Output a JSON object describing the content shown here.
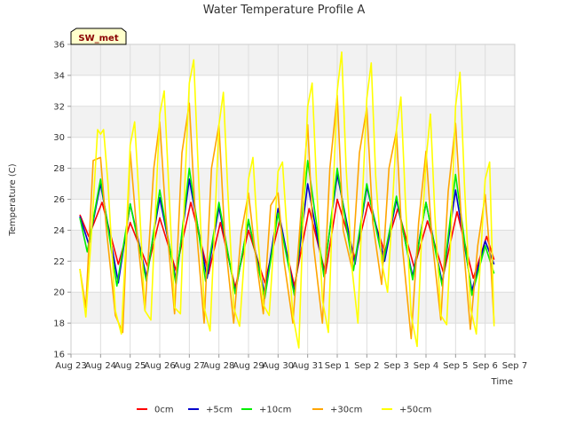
{
  "chart_data": {
    "type": "line",
    "title": "Water Temperature Profile A",
    "xlabel": "Time",
    "ylabel": "Temperature (C)",
    "station_tag": "SW_met",
    "xlim": [
      0,
      15
    ],
    "ylim": [
      16,
      36
    ],
    "x_tick_labels": [
      "Aug 23",
      "Aug 24",
      "Aug 25",
      "Aug 26",
      "Aug 27",
      "Aug 28",
      "Aug 29",
      "Aug 30",
      "Aug 31",
      "Sep 1",
      "Sep 2",
      "Sep 3",
      "Sep 4",
      "Sep 5",
      "Sep 6",
      "Sep 7"
    ],
    "y_ticks": [
      16,
      18,
      20,
      22,
      24,
      26,
      28,
      30,
      32,
      34,
      36
    ],
    "grid": true,
    "legend_position": "bottom",
    "colors": {
      "0cm": "#ff0000",
      "+5cm": "#0000cc",
      "+10cm": "#00ee00",
      "+30cm": "#ffa500",
      "+50cm": "#ffff00"
    },
    "series": [
      {
        "name": "0cm",
        "x": [
          0.3,
          0.6,
          1.05,
          1.6,
          2.0,
          2.6,
          3.0,
          3.55,
          4.05,
          4.65,
          5.05,
          5.55,
          6.0,
          6.55,
          7.05,
          7.55,
          8.05,
          8.6,
          9.0,
          9.6,
          10.05,
          10.6,
          11.05,
          11.6,
          12.05,
          12.6,
          13.05,
          13.6,
          14.05,
          14.3
        ],
        "y": [
          25.0,
          23.6,
          25.8,
          21.8,
          24.5,
          21.6,
          24.8,
          21.4,
          25.8,
          21.2,
          24.5,
          20.3,
          24.0,
          20.6,
          24.6,
          20.4,
          25.4,
          21.2,
          26.0,
          22.2,
          25.8,
          22.6,
          25.4,
          21.6,
          24.6,
          21.2,
          25.2,
          20.9,
          23.6,
          22.1
        ]
      },
      {
        "name": "+5cm",
        "x": [
          0.3,
          0.6,
          1.0,
          1.6,
          2.0,
          2.55,
          3.0,
          3.55,
          4.0,
          4.6,
          5.0,
          5.55,
          6.0,
          6.55,
          7.0,
          7.55,
          8.0,
          8.55,
          9.0,
          9.6,
          10.0,
          10.6,
          11.0,
          11.55,
          12.0,
          12.55,
          13.0,
          13.55,
          14.0,
          14.3
        ],
        "y": [
          24.9,
          23.1,
          27.0,
          20.6,
          25.7,
          21.0,
          26.1,
          20.8,
          27.3,
          20.9,
          25.5,
          20.0,
          24.6,
          19.9,
          25.4,
          20.0,
          27.0,
          21.2,
          27.6,
          21.8,
          26.8,
          22.0,
          26.0,
          21.0,
          25.8,
          20.6,
          26.6,
          20.1,
          23.3,
          21.8
        ]
      },
      {
        "name": "+10cm",
        "x": [
          0.3,
          0.55,
          1.0,
          1.55,
          2.0,
          2.55,
          3.0,
          3.55,
          4.0,
          4.55,
          5.0,
          5.55,
          6.0,
          6.55,
          7.0,
          7.55,
          8.0,
          8.55,
          9.0,
          9.55,
          10.0,
          10.55,
          11.0,
          11.55,
          12.0,
          12.55,
          13.0,
          13.55,
          14.0,
          14.3
        ],
        "y": [
          24.8,
          22.6,
          27.3,
          20.4,
          25.7,
          20.7,
          26.6,
          20.5,
          28.0,
          20.7,
          25.8,
          19.9,
          24.7,
          19.6,
          25.1,
          19.8,
          28.5,
          21.0,
          28.0,
          21.4,
          27.0,
          21.9,
          26.2,
          20.8,
          25.8,
          20.4,
          27.6,
          19.8,
          23.0,
          21.2
        ]
      },
      {
        "name": "+30cm",
        "x": [
          0.3,
          0.5,
          0.75,
          1.0,
          1.2,
          1.5,
          1.75,
          2.0,
          2.2,
          2.5,
          2.8,
          3.0,
          3.2,
          3.5,
          3.75,
          4.0,
          4.2,
          4.5,
          4.75,
          5.0,
          5.2,
          5.5,
          5.75,
          6.0,
          6.2,
          6.5,
          6.75,
          7.0,
          7.2,
          7.5,
          7.75,
          8.0,
          8.2,
          8.5,
          8.75,
          9.0,
          9.2,
          9.5,
          9.75,
          10.0,
          10.2,
          10.5,
          10.75,
          11.0,
          11.2,
          11.5,
          11.75,
          12.0,
          12.2,
          12.5,
          12.75,
          13.0,
          13.2,
          13.5,
          13.75,
          14.0,
          14.2,
          14.3
        ],
        "y": [
          21.5,
          19.0,
          28.5,
          28.7,
          24.0,
          18.5,
          17.4,
          29.1,
          24.5,
          18.8,
          28.0,
          31.0,
          25.0,
          18.6,
          29.0,
          32.2,
          25.0,
          18.0,
          28.0,
          30.8,
          23.5,
          18.0,
          23.8,
          26.4,
          23.0,
          18.6,
          25.6,
          26.4,
          22.0,
          18.0,
          24.5,
          30.8,
          23.0,
          18.0,
          28.0,
          32.7,
          24.0,
          21.5,
          29.0,
          31.9,
          24.5,
          20.5,
          28.0,
          30.4,
          23.0,
          17.0,
          24.5,
          29.1,
          23.5,
          18.2,
          26.5,
          30.9,
          24.5,
          17.6,
          23.0,
          26.3,
          21.5,
          18.0
        ]
      },
      {
        "name": "+50cm",
        "x": [
          0.3,
          0.5,
          0.7,
          0.9,
          1.0,
          1.1,
          1.25,
          1.5,
          1.7,
          1.85,
          2.0,
          2.15,
          2.3,
          2.5,
          2.7,
          2.85,
          3.0,
          3.15,
          3.3,
          3.5,
          3.7,
          3.85,
          4.0,
          4.15,
          4.3,
          4.5,
          4.7,
          4.85,
          5.0,
          5.15,
          5.3,
          5.5,
          5.7,
          5.85,
          6.0,
          6.15,
          6.3,
          6.5,
          6.7,
          6.85,
          7.0,
          7.15,
          7.3,
          7.5,
          7.7,
          7.85,
          8.0,
          8.15,
          8.3,
          8.5,
          8.7,
          8.85,
          9.0,
          9.15,
          9.3,
          9.5,
          9.7,
          9.85,
          10.0,
          10.15,
          10.3,
          10.5,
          10.7,
          10.85,
          11.0,
          11.15,
          11.3,
          11.5,
          11.7,
          11.85,
          12.0,
          12.15,
          12.3,
          12.5,
          12.7,
          12.85,
          13.0,
          13.15,
          13.3,
          13.5,
          13.7,
          13.85,
          14.0,
          14.15,
          14.3
        ],
        "y": [
          21.5,
          18.4,
          24.0,
          30.5,
          30.2,
          30.5,
          27.0,
          18.8,
          17.3,
          23.0,
          29.5,
          31.0,
          26.0,
          18.8,
          18.2,
          25.0,
          31.5,
          33.0,
          27.0,
          19.0,
          18.6,
          27.0,
          33.5,
          35.0,
          28.0,
          19.0,
          17.5,
          24.0,
          30.8,
          32.9,
          26.5,
          19.0,
          17.8,
          22.0,
          27.3,
          28.7,
          24.0,
          19.2,
          18.5,
          23.0,
          27.8,
          28.4,
          24.0,
          18.5,
          16.4,
          25.0,
          32.0,
          33.5,
          27.0,
          19.5,
          17.4,
          26.0,
          33.0,
          35.5,
          28.0,
          21.5,
          18.0,
          26.0,
          32.5,
          34.8,
          27.5,
          22.0,
          20.0,
          25.0,
          30.5,
          32.6,
          26.0,
          18.5,
          16.5,
          23.5,
          28.5,
          31.5,
          25.0,
          18.5,
          17.9,
          24.0,
          32.0,
          34.2,
          27.0,
          19.0,
          17.3,
          22.5,
          27.3,
          28.4,
          17.8
        ]
      }
    ]
  }
}
